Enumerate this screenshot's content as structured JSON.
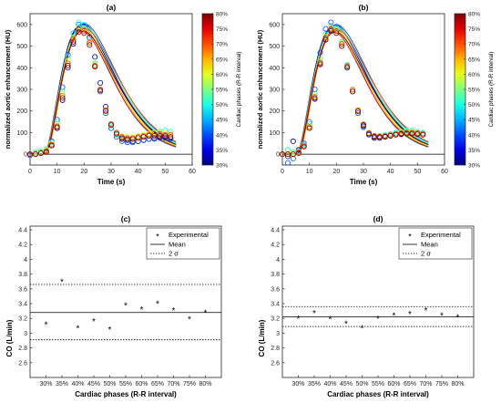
{
  "chart_data": [
    {
      "id": "a",
      "type": "scatter",
      "panel_label": "(a)",
      "xlabel": "Time (s)",
      "ylabel": "normalized aortic enhancement (HU)",
      "xlim": [
        0,
        60
      ],
      "ylim": [
        -50,
        650
      ],
      "xticks": [
        0,
        10,
        20,
        30,
        40,
        50,
        60
      ],
      "yticks": [
        0,
        100,
        200,
        300,
        400,
        500,
        600
      ],
      "grid": false,
      "markers": "open circles, colored by cardiac phase",
      "fits": "colored gamma-variate curves, one per cardiac phase",
      "colorbar": {
        "label": "Cardiac phases (R-R interval)",
        "min": 30,
        "max": 80,
        "ticks": [
          "30%",
          "35%",
          "40%",
          "45%",
          "50%",
          "55%",
          "60%",
          "65%",
          "70%",
          "75%",
          "80%"
        ],
        "colormap": "jet"
      },
      "phases": [
        30,
        35,
        40,
        45,
        50,
        55,
        60,
        65,
        70,
        75,
        80
      ],
      "x": [
        0,
        2,
        4,
        6,
        8,
        10,
        12,
        14,
        16,
        18,
        20,
        22,
        24,
        26,
        28,
        30,
        32,
        34,
        36,
        38,
        40,
        42,
        44,
        46,
        48,
        50,
        52
      ],
      "series": [
        {
          "phase": 30,
          "values": [
            0,
            5,
            8,
            10,
            40,
            120,
            250,
            400,
            510,
            580,
            590,
            540,
            450,
            330,
            220,
            140,
            90,
            70,
            65,
            60,
            60,
            65,
            70,
            75,
            80,
            80,
            75
          ]
        },
        {
          "phase": 40,
          "values": [
            -5,
            0,
            5,
            20,
            60,
            160,
            310,
            460,
            560,
            600,
            590,
            520,
            410,
            290,
            190,
            120,
            80,
            60,
            55,
            55,
            60,
            65,
            70,
            70,
            75,
            75,
            70
          ]
        },
        {
          "phase": 50,
          "values": [
            0,
            10,
            15,
            25,
            55,
            150,
            290,
            450,
            560,
            610,
            600,
            530,
            420,
            300,
            200,
            130,
            90,
            75,
            70,
            75,
            80,
            90,
            95,
            100,
            105,
            110,
            105
          ]
        },
        {
          "phase": 60,
          "values": [
            0,
            5,
            10,
            20,
            50,
            140,
            280,
            430,
            540,
            585,
            580,
            520,
            415,
            300,
            205,
            140,
            100,
            85,
            80,
            80,
            85,
            90,
            95,
            100,
            100,
            100,
            95
          ]
        },
        {
          "phase": 70,
          "values": [
            0,
            0,
            5,
            15,
            45,
            130,
            270,
            420,
            530,
            575,
            570,
            515,
            410,
            300,
            205,
            140,
            100,
            80,
            75,
            75,
            80,
            85,
            90,
            95,
            95,
            90,
            90
          ]
        },
        {
          "phase": 80,
          "values": [
            0,
            0,
            5,
            10,
            40,
            125,
            260,
            410,
            520,
            565,
            560,
            505,
            405,
            295,
            200,
            135,
            95,
            75,
            70,
            70,
            75,
            80,
            85,
            85,
            85,
            85,
            80
          ]
        }
      ]
    },
    {
      "id": "b",
      "type": "scatter",
      "panel_label": "(b)",
      "xlabel": "Time (s)",
      "ylabel": "normalized aortic enhancement (HU)",
      "xlim": [
        0,
        60
      ],
      "ylim": [
        -50,
        650
      ],
      "xticks": [
        0,
        10,
        20,
        30,
        40,
        50,
        60
      ],
      "yticks": [
        0,
        100,
        200,
        300,
        400,
        500,
        600
      ],
      "grid": false,
      "markers": "open circles, colored by cardiac phase",
      "fits": "colored gamma-variate curves, one per cardiac phase",
      "colorbar": {
        "label": "Cardiac phases (R-R interval)",
        "min": 30,
        "max": 80,
        "ticks": [
          "30%",
          "35%",
          "40%",
          "45%",
          "50%",
          "55%",
          "60%",
          "65%",
          "70%",
          "75%",
          "80%"
        ],
        "colormap": "jet"
      },
      "phases": [
        30,
        35,
        40,
        45,
        50,
        55,
        60,
        65,
        70,
        75,
        80
      ],
      "x": [
        0,
        2,
        4,
        6,
        8,
        10,
        12,
        14,
        16,
        18,
        20,
        22,
        24,
        26,
        28,
        30,
        32,
        34,
        36,
        38,
        40,
        42,
        44,
        46,
        48,
        50,
        52
      ],
      "series": [
        {
          "phase": 30,
          "values": [
            0,
            -10,
            60,
            20,
            40,
            130,
            260,
            420,
            530,
            575,
            570,
            510,
            410,
            300,
            200,
            130,
            90,
            75,
            75,
            80,
            85,
            90,
            95,
            100,
            100,
            100,
            95
          ]
        },
        {
          "phase": 40,
          "values": [
            0,
            -40,
            -20,
            10,
            50,
            150,
            300,
            470,
            580,
            610,
            590,
            515,
            405,
            290,
            190,
            125,
            90,
            80,
            80,
            85,
            90,
            95,
            100,
            100,
            100,
            95,
            90
          ]
        },
        {
          "phase": 50,
          "values": [
            0,
            20,
            10,
            15,
            45,
            140,
            280,
            440,
            555,
            595,
            585,
            520,
            415,
            300,
            200,
            135,
            95,
            85,
            85,
            90,
            95,
            100,
            105,
            110,
            110,
            105,
            100
          ]
        },
        {
          "phase": 60,
          "values": [
            0,
            5,
            5,
            10,
            40,
            130,
            270,
            430,
            545,
            585,
            575,
            515,
            410,
            300,
            205,
            140,
            100,
            85,
            85,
            85,
            90,
            95,
            100,
            105,
            105,
            100,
            95
          ]
        },
        {
          "phase": 70,
          "values": [
            0,
            0,
            0,
            10,
            40,
            125,
            265,
            425,
            540,
            580,
            570,
            510,
            408,
            298,
            203,
            138,
            98,
            85,
            83,
            85,
            90,
            95,
            98,
            100,
            100,
            98,
            95
          ]
        },
        {
          "phase": 80,
          "values": [
            0,
            0,
            0,
            5,
            35,
            120,
            255,
            415,
            530,
            570,
            560,
            500,
            400,
            290,
            198,
            135,
            95,
            82,
            80,
            82,
            85,
            90,
            92,
            95,
            95,
            92,
            90
          ]
        }
      ]
    },
    {
      "id": "c",
      "type": "scatter",
      "panel_label": "(c)",
      "xlabel": "Cardiac phases (R-R interval)",
      "ylabel": "CO (L/min)",
      "categories": [
        "30%",
        "35%",
        "40%",
        "45%",
        "50%",
        "55%",
        "60%",
        "65%",
        "70%",
        "75%",
        "80%"
      ],
      "ylim": [
        2.4,
        4.45
      ],
      "yticks": [
        2.6,
        2.8,
        3,
        3.2,
        3.4,
        3.6,
        3.8,
        4,
        4.2,
        4.4
      ],
      "grid": false,
      "legend": {
        "position": "top-right",
        "entries": [
          "Experimental",
          "Mean",
          "2 σ"
        ]
      },
      "series": [
        {
          "name": "Experimental",
          "values": [
            3.13,
            3.71,
            3.08,
            3.17,
            3.06,
            3.39,
            3.33,
            3.41,
            3.32,
            3.2,
            3.29
          ]
        }
      ],
      "mean": 3.28,
      "two_sigma": [
        2.91,
        3.66
      ]
    },
    {
      "id": "d",
      "type": "scatter",
      "panel_label": "(d)",
      "xlabel": "Cardiac phases (R-R interval)",
      "ylabel": "CO (L/min)",
      "categories": [
        "30%",
        "35%",
        "40%",
        "45%",
        "50%",
        "55%",
        "60%",
        "65%",
        "70%",
        "75%",
        "80%"
      ],
      "ylim": [
        2.4,
        4.45
      ],
      "yticks": [
        2.6,
        2.8,
        3,
        3.2,
        3.4,
        3.6,
        3.8,
        4,
        4.2,
        4.4
      ],
      "grid": false,
      "legend": {
        "position": "top-right",
        "entries": [
          "Experimental",
          "Mean",
          "2 σ"
        ]
      },
      "series": [
        {
          "name": "Experimental",
          "values": [
            3.21,
            3.28,
            3.2,
            3.14,
            3.08,
            3.21,
            3.25,
            3.27,
            3.32,
            3.25,
            3.23
          ]
        }
      ],
      "mean": 3.22,
      "two_sigma": [
        3.09,
        3.36
      ]
    }
  ]
}
